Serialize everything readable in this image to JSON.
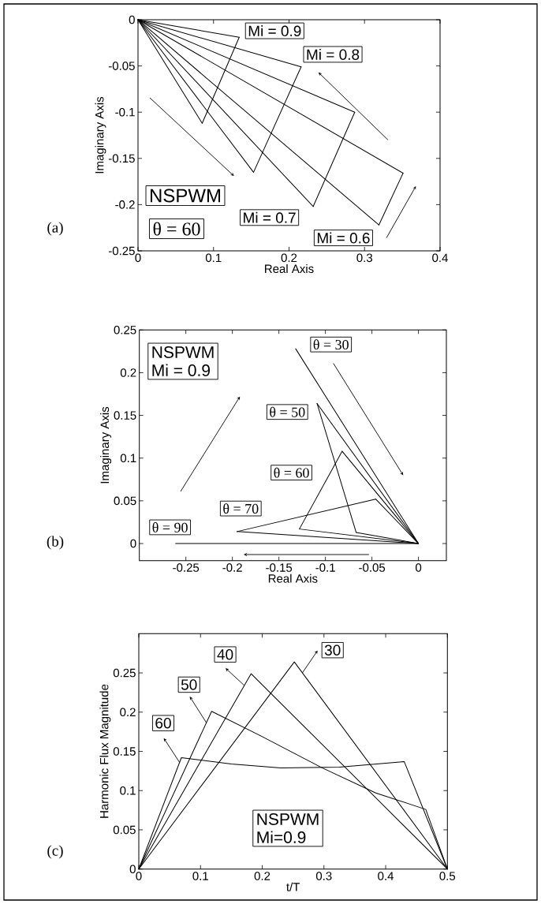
{
  "chart_data": [
    {
      "type": "line",
      "xlabel": "Real Axis",
      "ylabel": "Imaginary Axis",
      "xlim": [
        0,
        0.4
      ],
      "ylim": [
        -0.25,
        0
      ],
      "xticks": [
        0,
        0.1,
        0.2,
        0.3,
        0.4
      ],
      "yticks": [
        -0.25,
        -0.2,
        -0.15,
        -0.1,
        -0.05,
        0
      ],
      "series": [
        {
          "color": "#000000",
          "x": [
            0,
            0.134
          ],
          "values": [
            0,
            -0.019
          ]
        },
        {
          "color": "#000000",
          "x": [
            0.085,
            0.134
          ],
          "values": [
            -0.112,
            -0.019
          ]
        },
        {
          "color": "#000000",
          "x": [
            0,
            0.085
          ],
          "values": [
            0,
            -0.112
          ]
        },
        {
          "color": "#000000",
          "x": [
            0,
            0.216
          ],
          "values": [
            0,
            -0.051
          ]
        },
        {
          "color": "#000000",
          "x": [
            0.153,
            0.216
          ],
          "values": [
            -0.165,
            -0.051
          ]
        },
        {
          "color": "#000000",
          "x": [
            0,
            0.153
          ],
          "values": [
            0,
            -0.165
          ]
        },
        {
          "color": "#000000",
          "x": [
            0,
            0.287
          ],
          "values": [
            0,
            -0.1
          ]
        },
        {
          "color": "#000000",
          "x": [
            0.232,
            0.287
          ],
          "values": [
            -0.202,
            -0.1
          ]
        },
        {
          "color": "#000000",
          "x": [
            0,
            0.232
          ],
          "values": [
            0,
            -0.202
          ]
        },
        {
          "color": "#000000",
          "x": [
            0,
            0.351
          ],
          "values": [
            0,
            -0.166
          ]
        },
        {
          "color": "#000000",
          "x": [
            0.319,
            0.351
          ],
          "values": [
            -0.222,
            -0.166
          ]
        },
        {
          "color": "#000000",
          "x": [
            0,
            0.319
          ],
          "values": [
            0,
            -0.222
          ]
        }
      ],
      "annotations": [
        "(a)",
        "NSPWM",
        "θ = 60",
        "Mi = 0.9",
        "Mi = 0.8",
        "Mi = 0.7",
        "Mi = 0.6"
      ]
    },
    {
      "type": "line",
      "xlabel": "Real Axis",
      "ylabel": "Imaginary Axis",
      "xlim": [
        -0.3,
        0.03
      ],
      "ylim": [
        -0.02,
        0.25
      ],
      "xticks": [
        -0.25,
        -0.2,
        -0.15,
        -0.1,
        -0.05,
        0
      ],
      "yticks": [
        0,
        0.05,
        0.1,
        0.15,
        0.2,
        0.25
      ],
      "series": [
        {
          "color": "#000000",
          "x": [
            -0.132,
            0
          ],
          "values": [
            0.228,
            0
          ]
        },
        {
          "color": "#000000",
          "x": [
            -0.109,
            0
          ],
          "values": [
            0.164,
            0
          ]
        },
        {
          "color": "#000000",
          "x": [
            -0.109,
            -0.067
          ],
          "values": [
            0.164,
            0.013
          ]
        },
        {
          "color": "#000000",
          "x": [
            -0.067,
            0
          ],
          "values": [
            0.013,
            0
          ]
        },
        {
          "color": "#000000",
          "x": [
            -0.082,
            0
          ],
          "values": [
            0.108,
            0
          ]
        },
        {
          "color": "#000000",
          "x": [
            -0.128,
            -0.082
          ],
          "values": [
            0.017,
            0.108
          ]
        },
        {
          "color": "#000000",
          "x": [
            -0.128,
            0
          ],
          "values": [
            0.017,
            0
          ]
        },
        {
          "color": "#000000",
          "x": [
            -0.046,
            0
          ],
          "values": [
            0.052,
            0
          ]
        },
        {
          "color": "#000000",
          "x": [
            -0.195,
            -0.046
          ],
          "values": [
            0.014,
            0.052
          ]
        },
        {
          "color": "#000000",
          "x": [
            -0.195,
            0
          ],
          "values": [
            0.014,
            0
          ]
        },
        {
          "color": "#000000",
          "x": [
            -0.261,
            0
          ],
          "values": [
            0,
            0
          ]
        }
      ],
      "annotations": [
        "(b)",
        "NSPWM",
        "Mi = 0.9",
        "θ = 30",
        "θ = 50",
        "θ = 60",
        "θ = 70",
        "θ = 90"
      ]
    },
    {
      "type": "line",
      "xlabel": "t/T",
      "ylabel": "Harmonic Flux Magnitude",
      "xlim": [
        0,
        0.5
      ],
      "ylim": [
        0,
        0.3
      ],
      "xticks": [
        0,
        0.1,
        0.2,
        0.3,
        0.4,
        0.5
      ],
      "yticks": [
        0,
        0.05,
        0.1,
        0.15,
        0.2,
        0.25
      ],
      "series": [
        {
          "color": "#000000",
          "x": [
            0,
            0.252,
            0.5
          ],
          "values": [
            0,
            0.264,
            0
          ]
        },
        {
          "color": "#000000",
          "x": [
            0,
            0.182,
            0.5
          ],
          "values": [
            0,
            0.249,
            0
          ]
        },
        {
          "color": "#000000",
          "x": [
            0,
            0.118,
            0.197,
            0.297,
            0.384,
            0.465,
            0.5
          ],
          "values": [
            0,
            0.201,
            0.17,
            0.129,
            0.097,
            0.076,
            0
          ]
        },
        {
          "color": "#000000",
          "x": [
            0,
            0.069,
            0.15,
            0.23,
            0.325,
            0.43,
            0.5
          ],
          "values": [
            0,
            0.142,
            0.134,
            0.129,
            0.13,
            0.137,
            0
          ]
        }
      ],
      "annotations": [
        "(c)",
        "NSPWM",
        "Mi=0.9",
        {
          "text": "30",
          "x": 0.265,
          "y": 0.25
        },
        {
          "text": "40",
          "x": 0.171,
          "y": 0.234
        },
        {
          "text": "50",
          "x": 0.1095,
          "y": 0.1865
        },
        {
          "text": "60",
          "x": 0.066,
          "y": 0.136
        }
      ]
    }
  ]
}
